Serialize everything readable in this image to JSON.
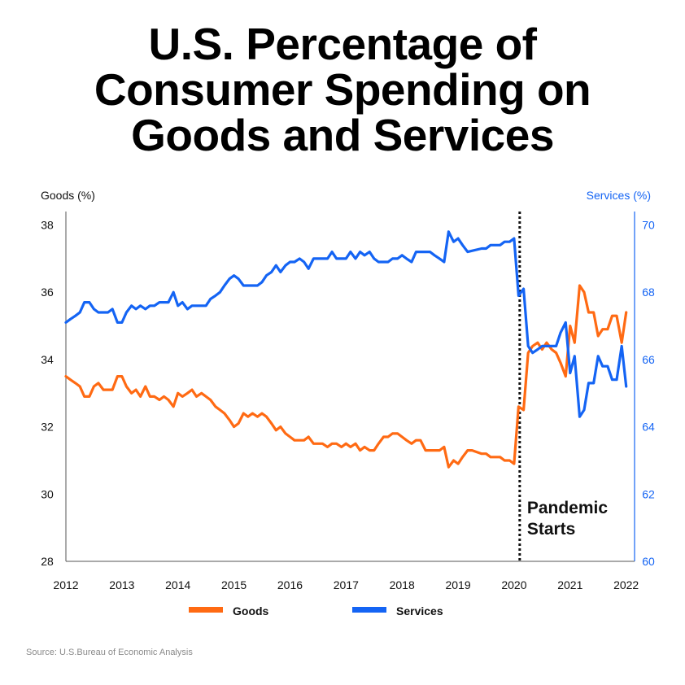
{
  "title_lines": [
    "U.S. Percentage of",
    "Consumer Spending on",
    "Goods and Services"
  ],
  "source": "Source: U.S.Bureau of Economic Analysis",
  "chart_data": {
    "type": "line",
    "title": "U.S. Percentage of Consumer Spending on Goods and Services",
    "xlabel": "",
    "ylabel_left": "Goods (%)",
    "ylabel_right": "Services (%)",
    "xlim": [
      2012,
      2022.15
    ],
    "ylim_left": [
      28,
      38.4
    ],
    "ylim_right": [
      60,
      70.4
    ],
    "x_ticks": [
      "2012",
      "2013",
      "2014",
      "2015",
      "2016",
      "2017",
      "2018",
      "2019",
      "2020",
      "2021",
      "2022"
    ],
    "y_ticks_left": [
      28,
      30,
      32,
      34,
      36,
      38
    ],
    "y_ticks_right": [
      60,
      62,
      64,
      66,
      68,
      70
    ],
    "annotation": {
      "label_lines": [
        "Pandemic",
        "Starts"
      ],
      "x": 2020.1
    },
    "colors": {
      "goods": "#FF6A13",
      "services": "#1464F4",
      "axis_right": "#1464F4",
      "axis": "#333333"
    },
    "series": [
      {
        "name": "Goods",
        "axis": "left",
        "points": [
          [
            2012.0,
            33.5
          ],
          [
            2012.08,
            33.4
          ],
          [
            2012.17,
            33.3
          ],
          [
            2012.25,
            33.2
          ],
          [
            2012.33,
            32.9
          ],
          [
            2012.42,
            32.9
          ],
          [
            2012.5,
            33.2
          ],
          [
            2012.58,
            33.3
          ],
          [
            2012.67,
            33.1
          ],
          [
            2012.75,
            33.1
          ],
          [
            2012.83,
            33.1
          ],
          [
            2012.92,
            33.5
          ],
          [
            2013.0,
            33.5
          ],
          [
            2013.08,
            33.2
          ],
          [
            2013.17,
            33.0
          ],
          [
            2013.25,
            33.1
          ],
          [
            2013.33,
            32.9
          ],
          [
            2013.42,
            33.2
          ],
          [
            2013.5,
            32.9
          ],
          [
            2013.58,
            32.9
          ],
          [
            2013.67,
            32.8
          ],
          [
            2013.75,
            32.9
          ],
          [
            2013.83,
            32.8
          ],
          [
            2013.92,
            32.6
          ],
          [
            2014.0,
            33.0
          ],
          [
            2014.08,
            32.9
          ],
          [
            2014.17,
            33.0
          ],
          [
            2014.25,
            33.1
          ],
          [
            2014.33,
            32.9
          ],
          [
            2014.42,
            33.0
          ],
          [
            2014.5,
            32.9
          ],
          [
            2014.58,
            32.8
          ],
          [
            2014.67,
            32.6
          ],
          [
            2014.75,
            32.5
          ],
          [
            2014.83,
            32.4
          ],
          [
            2014.92,
            32.2
          ],
          [
            2015.0,
            32.0
          ],
          [
            2015.08,
            32.1
          ],
          [
            2015.17,
            32.4
          ],
          [
            2015.25,
            32.3
          ],
          [
            2015.33,
            32.4
          ],
          [
            2015.42,
            32.3
          ],
          [
            2015.5,
            32.4
          ],
          [
            2015.58,
            32.3
          ],
          [
            2015.67,
            32.1
          ],
          [
            2015.75,
            31.9
          ],
          [
            2015.83,
            32.0
          ],
          [
            2015.92,
            31.8
          ],
          [
            2016.0,
            31.7
          ],
          [
            2016.08,
            31.6
          ],
          [
            2016.17,
            31.6
          ],
          [
            2016.25,
            31.6
          ],
          [
            2016.33,
            31.7
          ],
          [
            2016.42,
            31.5
          ],
          [
            2016.5,
            31.5
          ],
          [
            2016.58,
            31.5
          ],
          [
            2016.67,
            31.4
          ],
          [
            2016.75,
            31.5
          ],
          [
            2016.83,
            31.5
          ],
          [
            2016.92,
            31.4
          ],
          [
            2017.0,
            31.5
          ],
          [
            2017.08,
            31.4
          ],
          [
            2017.17,
            31.5
          ],
          [
            2017.25,
            31.3
          ],
          [
            2017.33,
            31.4
          ],
          [
            2017.42,
            31.3
          ],
          [
            2017.5,
            31.3
          ],
          [
            2017.58,
            31.5
          ],
          [
            2017.67,
            31.7
          ],
          [
            2017.75,
            31.7
          ],
          [
            2017.83,
            31.8
          ],
          [
            2017.92,
            31.8
          ],
          [
            2018.0,
            31.7
          ],
          [
            2018.08,
            31.6
          ],
          [
            2018.17,
            31.5
          ],
          [
            2018.25,
            31.6
          ],
          [
            2018.33,
            31.6
          ],
          [
            2018.42,
            31.3
          ],
          [
            2018.5,
            31.3
          ],
          [
            2018.58,
            31.3
          ],
          [
            2018.67,
            31.3
          ],
          [
            2018.75,
            31.4
          ],
          [
            2018.83,
            30.8
          ],
          [
            2018.92,
            31.0
          ],
          [
            2019.0,
            30.9
          ],
          [
            2019.08,
            31.1
          ],
          [
            2019.17,
            31.3
          ],
          [
            2019.25,
            31.3
          ],
          [
            2019.42,
            31.2
          ],
          [
            2019.5,
            31.2
          ],
          [
            2019.58,
            31.1
          ],
          [
            2019.67,
            31.1
          ],
          [
            2019.75,
            31.1
          ],
          [
            2019.83,
            31.0
          ],
          [
            2019.92,
            31.0
          ],
          [
            2020.0,
            30.9
          ],
          [
            2020.08,
            32.6
          ],
          [
            2020.17,
            32.5
          ],
          [
            2020.25,
            34.2
          ],
          [
            2020.33,
            34.4
          ],
          [
            2020.42,
            34.5
          ],
          [
            2020.5,
            34.3
          ],
          [
            2020.58,
            34.5
          ],
          [
            2020.67,
            34.3
          ],
          [
            2020.75,
            34.2
          ],
          [
            2020.83,
            33.9
          ],
          [
            2020.92,
            33.5
          ],
          [
            2021.0,
            35.0
          ],
          [
            2021.08,
            34.5
          ],
          [
            2021.17,
            36.2
          ],
          [
            2021.25,
            36.0
          ],
          [
            2021.33,
            35.4
          ],
          [
            2021.42,
            35.4
          ],
          [
            2021.5,
            34.7
          ],
          [
            2021.58,
            34.9
          ],
          [
            2021.67,
            34.9
          ],
          [
            2021.75,
            35.3
          ],
          [
            2021.83,
            35.3
          ],
          [
            2021.92,
            34.5
          ],
          [
            2022.0,
            35.4
          ]
        ]
      },
      {
        "name": "Services",
        "axis": "right",
        "points": [
          [
            2012.0,
            67.1
          ],
          [
            2012.08,
            67.2
          ],
          [
            2012.17,
            67.3
          ],
          [
            2012.25,
            67.4
          ],
          [
            2012.33,
            67.7
          ],
          [
            2012.42,
            67.7
          ],
          [
            2012.5,
            67.5
          ],
          [
            2012.58,
            67.4
          ],
          [
            2012.67,
            67.4
          ],
          [
            2012.75,
            67.4
          ],
          [
            2012.83,
            67.5
          ],
          [
            2012.92,
            67.1
          ],
          [
            2013.0,
            67.1
          ],
          [
            2013.08,
            67.4
          ],
          [
            2013.17,
            67.6
          ],
          [
            2013.25,
            67.5
          ],
          [
            2013.33,
            67.6
          ],
          [
            2013.42,
            67.5
          ],
          [
            2013.5,
            67.6
          ],
          [
            2013.58,
            67.6
          ],
          [
            2013.67,
            67.7
          ],
          [
            2013.75,
            67.7
          ],
          [
            2013.83,
            67.7
          ],
          [
            2013.92,
            68.0
          ],
          [
            2014.0,
            67.6
          ],
          [
            2014.08,
            67.7
          ],
          [
            2014.17,
            67.5
          ],
          [
            2014.25,
            67.6
          ],
          [
            2014.33,
            67.6
          ],
          [
            2014.42,
            67.6
          ],
          [
            2014.5,
            67.6
          ],
          [
            2014.58,
            67.8
          ],
          [
            2014.67,
            67.9
          ],
          [
            2014.75,
            68.0
          ],
          [
            2014.83,
            68.2
          ],
          [
            2014.92,
            68.4
          ],
          [
            2015.0,
            68.5
          ],
          [
            2015.08,
            68.4
          ],
          [
            2015.17,
            68.2
          ],
          [
            2015.25,
            68.2
          ],
          [
            2015.33,
            68.2
          ],
          [
            2015.42,
            68.2
          ],
          [
            2015.5,
            68.3
          ],
          [
            2015.58,
            68.5
          ],
          [
            2015.67,
            68.6
          ],
          [
            2015.75,
            68.8
          ],
          [
            2015.83,
            68.6
          ],
          [
            2015.92,
            68.8
          ],
          [
            2016.0,
            68.9
          ],
          [
            2016.08,
            68.9
          ],
          [
            2016.17,
            69.0
          ],
          [
            2016.25,
            68.9
          ],
          [
            2016.33,
            68.7
          ],
          [
            2016.42,
            69.0
          ],
          [
            2016.5,
            69.0
          ],
          [
            2016.58,
            69.0
          ],
          [
            2016.67,
            69.0
          ],
          [
            2016.75,
            69.2
          ],
          [
            2016.83,
            69.0
          ],
          [
            2016.92,
            69.0
          ],
          [
            2017.0,
            69.0
          ],
          [
            2017.08,
            69.2
          ],
          [
            2017.17,
            69.0
          ],
          [
            2017.25,
            69.2
          ],
          [
            2017.33,
            69.1
          ],
          [
            2017.42,
            69.2
          ],
          [
            2017.5,
            69.0
          ],
          [
            2017.58,
            68.9
          ],
          [
            2017.67,
            68.9
          ],
          [
            2017.75,
            68.9
          ],
          [
            2017.83,
            69.0
          ],
          [
            2017.92,
            69.0
          ],
          [
            2018.0,
            69.1
          ],
          [
            2018.08,
            69.0
          ],
          [
            2018.17,
            68.9
          ],
          [
            2018.25,
            69.2
          ],
          [
            2018.33,
            69.2
          ],
          [
            2018.42,
            69.2
          ],
          [
            2018.5,
            69.2
          ],
          [
            2018.58,
            69.1
          ],
          [
            2018.67,
            69.0
          ],
          [
            2018.75,
            68.9
          ],
          [
            2018.83,
            69.8
          ],
          [
            2018.92,
            69.5
          ],
          [
            2019.0,
            69.6
          ],
          [
            2019.08,
            69.4
          ],
          [
            2019.17,
            69.2
          ],
          [
            2019.42,
            69.3
          ],
          [
            2019.5,
            69.3
          ],
          [
            2019.58,
            69.4
          ],
          [
            2019.67,
            69.4
          ],
          [
            2019.75,
            69.4
          ],
          [
            2019.83,
            69.5
          ],
          [
            2019.92,
            69.5
          ],
          [
            2020.0,
            69.6
          ],
          [
            2020.08,
            67.9
          ],
          [
            2020.17,
            68.1
          ],
          [
            2020.25,
            66.4
          ],
          [
            2020.33,
            66.2
          ],
          [
            2020.42,
            66.3
          ],
          [
            2020.5,
            66.4
          ],
          [
            2020.58,
            66.4
          ],
          [
            2020.67,
            66.4
          ],
          [
            2020.75,
            66.4
          ],
          [
            2020.83,
            66.8
          ],
          [
            2020.92,
            67.1
          ],
          [
            2021.0,
            65.6
          ],
          [
            2021.08,
            66.1
          ],
          [
            2021.17,
            64.3
          ],
          [
            2021.25,
            64.5
          ],
          [
            2021.33,
            65.3
          ],
          [
            2021.42,
            65.3
          ],
          [
            2021.5,
            66.1
          ],
          [
            2021.58,
            65.8
          ],
          [
            2021.67,
            65.8
          ],
          [
            2021.75,
            65.4
          ],
          [
            2021.83,
            65.4
          ],
          [
            2021.92,
            66.4
          ],
          [
            2022.0,
            65.2
          ]
        ]
      }
    ]
  }
}
